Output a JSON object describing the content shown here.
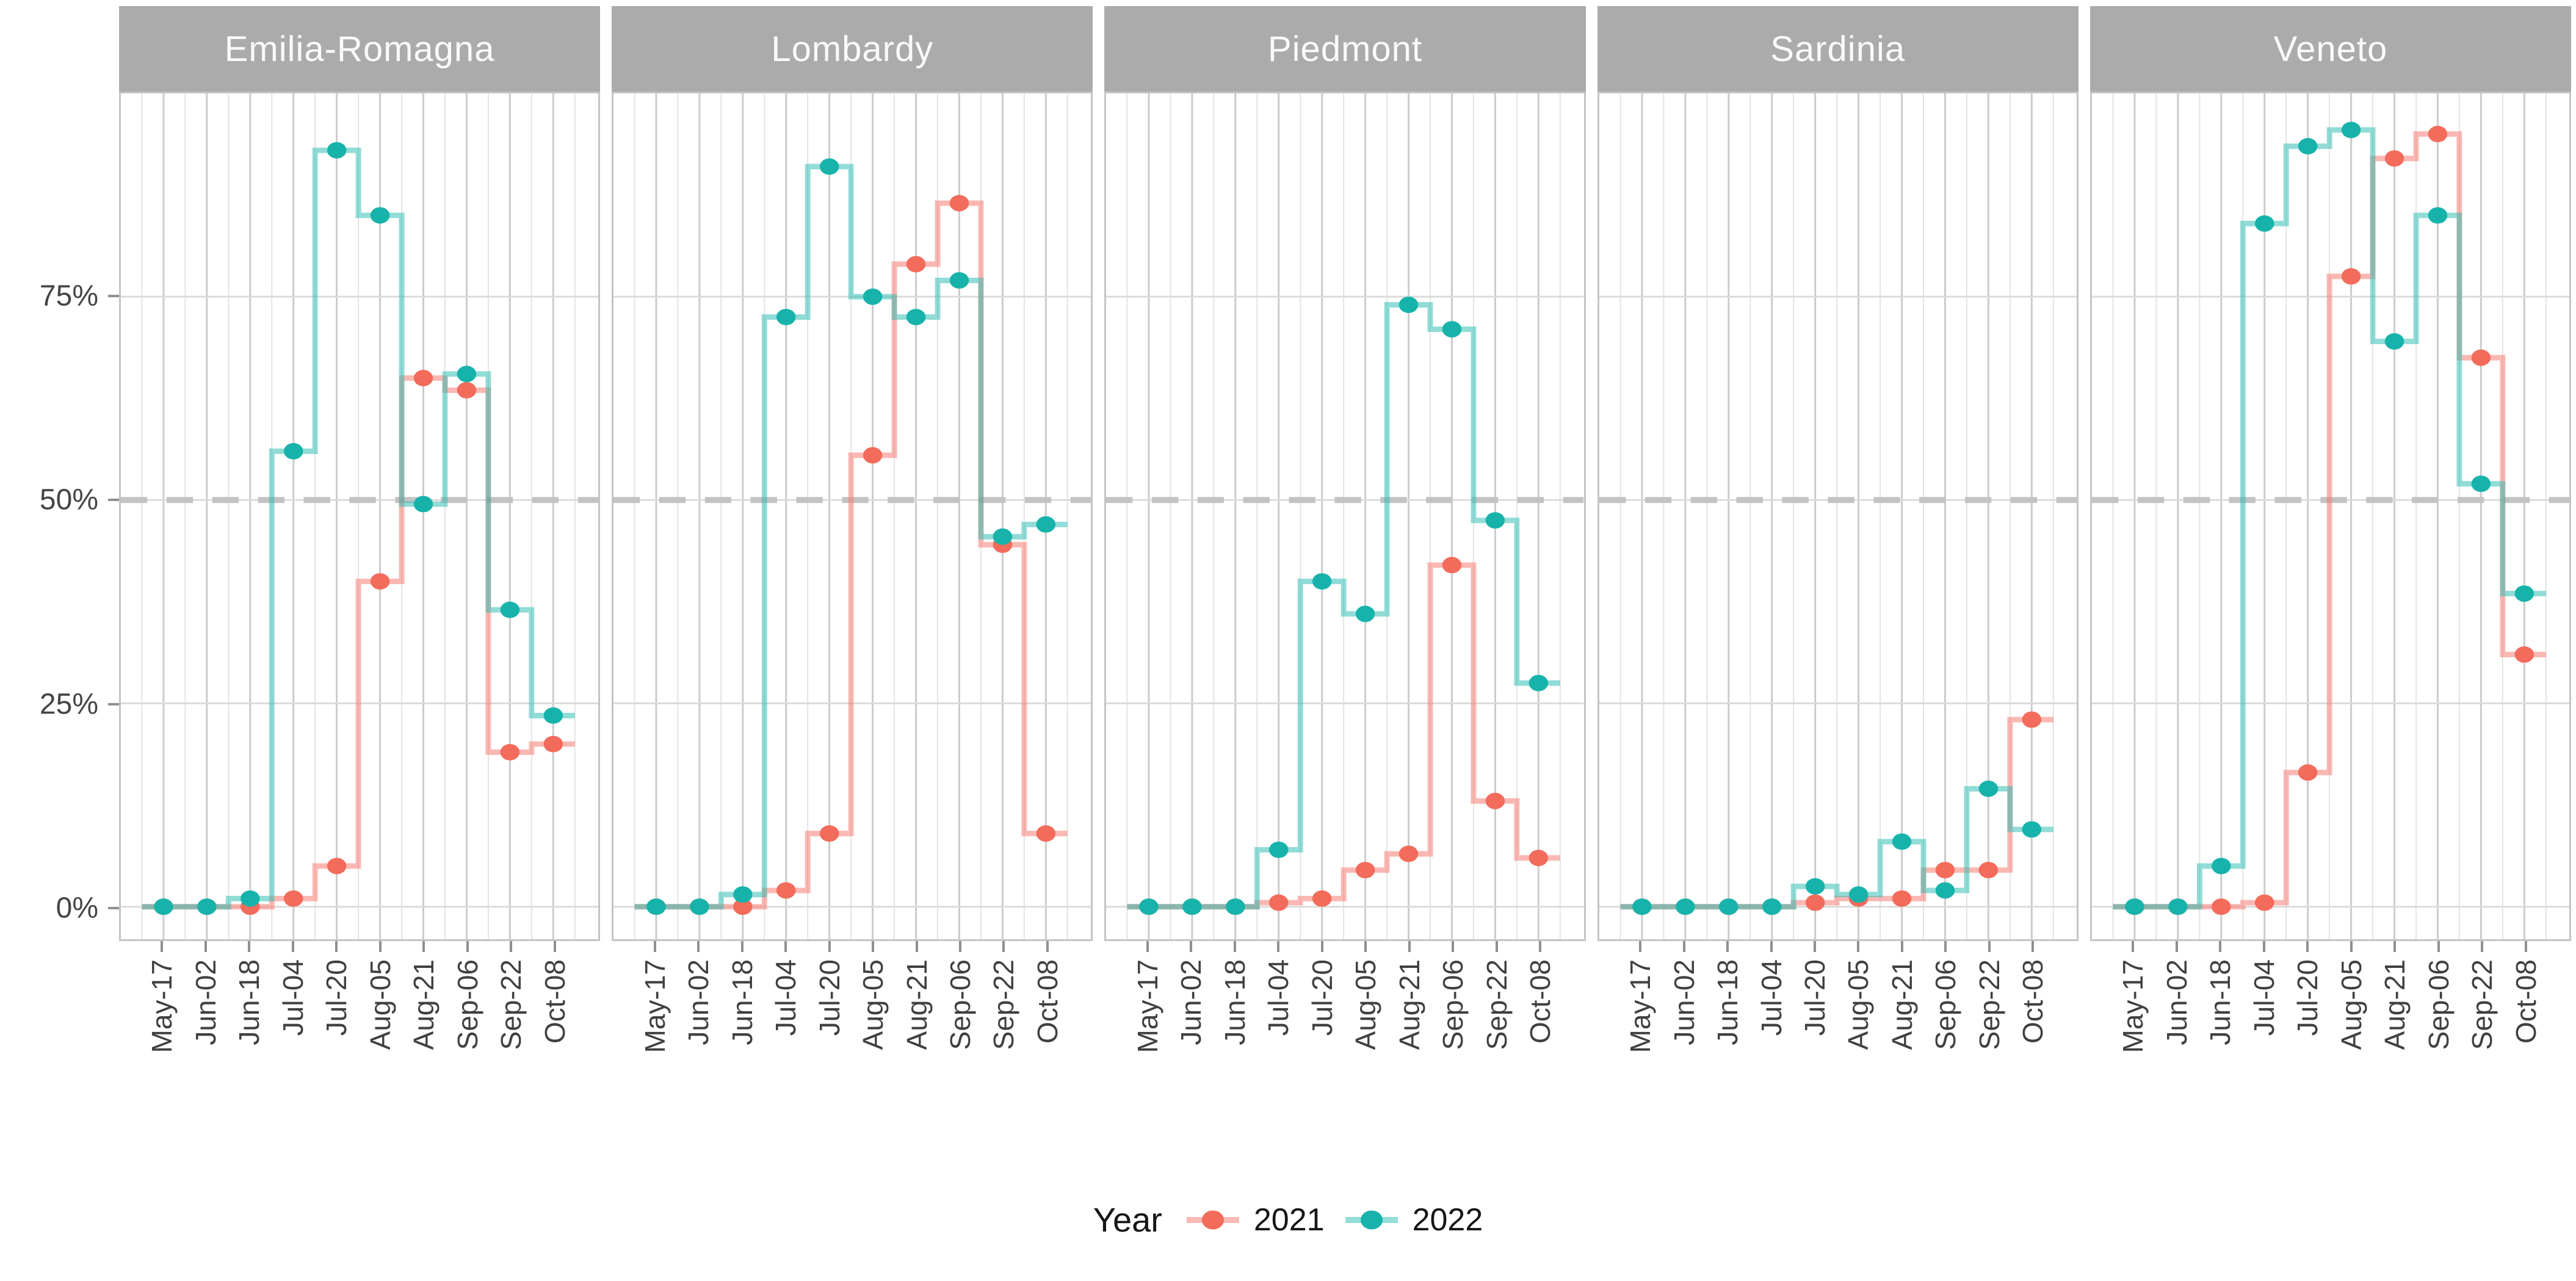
{
  "chart_data": {
    "type": "line",
    "variant": "step-mid-with-points",
    "title": "",
    "x_tick_labels": [
      "May-17",
      "Jun-02",
      "Jun-18",
      "Jul-04",
      "Jul-20",
      "Aug-05",
      "Aug-21",
      "Sep-06",
      "Sep-22",
      "Oct-08"
    ],
    "y_tick_labels": [
      "0%",
      "25%",
      "50%",
      "75%"
    ],
    "y_tick_values": [
      0,
      25,
      50,
      75
    ],
    "ylim": [
      -4,
      100
    ],
    "reference_line_y": 50,
    "grid": true,
    "legend_position": "bottom",
    "facets": [
      {
        "name": "Emilia-Romagna",
        "series": [
          {
            "name": "2021",
            "values": [
              0,
              0,
              0,
              1,
              5,
              40,
              65,
              63.5,
              19,
              20
            ]
          },
          {
            "name": "2022",
            "values": [
              0,
              0,
              1,
              56,
              93,
              85,
              49.5,
              65.5,
              36.5,
              23.5
            ]
          }
        ]
      },
      {
        "name": "Lombardy",
        "series": [
          {
            "name": "2021",
            "values": [
              0,
              0,
              0,
              2,
              9,
              55.5,
              79,
              86.5,
              44.5,
              9
            ]
          },
          {
            "name": "2022",
            "values": [
              0,
              0,
              1.5,
              72.5,
              91,
              75,
              72.5,
              77,
              45.5,
              47
            ]
          }
        ]
      },
      {
        "name": "Piedmont",
        "series": [
          {
            "name": "2021",
            "values": [
              0,
              0,
              0,
              0.5,
              1,
              4.5,
              6.5,
              42,
              13,
              6
            ]
          },
          {
            "name": "2022",
            "values": [
              0,
              0,
              0,
              7,
              40,
              36,
              74,
              71,
              47.5,
              27.5
            ]
          }
        ]
      },
      {
        "name": "Sardinia",
        "series": [
          {
            "name": "2021",
            "values": [
              0,
              0,
              0,
              0,
              0.5,
              1,
              1,
              4.5,
              4.5,
              23
            ]
          },
          {
            "name": "2022",
            "values": [
              0,
              0,
              0,
              0,
              2.5,
              1.5,
              8,
              2,
              14.5,
              9.5
            ]
          }
        ]
      },
      {
        "name": "Veneto",
        "series": [
          {
            "name": "2021",
            "values": [
              0,
              0,
              0,
              0.5,
              16.5,
              77.5,
              92,
              95,
              67.5,
              31
            ]
          },
          {
            "name": "2022",
            "values": [
              0,
              0,
              5,
              84,
              93.5,
              95.5,
              69.5,
              85,
              52,
              38.5
            ]
          }
        ]
      }
    ],
    "legend": {
      "title": "Year",
      "entries": [
        {
          "label": "2021",
          "series": "2021"
        },
        {
          "label": "2022",
          "series": "2022"
        }
      ]
    }
  },
  "colors": {
    "series_2021_point": "#F26B5B",
    "series_2021_line": "#F8766D",
    "series_2022_point": "#17B3AB",
    "series_2022_line": "#2CBBB3",
    "line_opacity": "0.52",
    "strip_background": "#ABABAB",
    "strip_text": "#FAFAFA",
    "axis_text": "#404040",
    "panel_border": "#C4C4C4",
    "grid_major_horizontal": "#DBDBDB",
    "grid_major_vertical": "#CBCBCB",
    "grid_minor_vertical": "#E3E3E3",
    "reference_line": "#C3C3C3"
  }
}
